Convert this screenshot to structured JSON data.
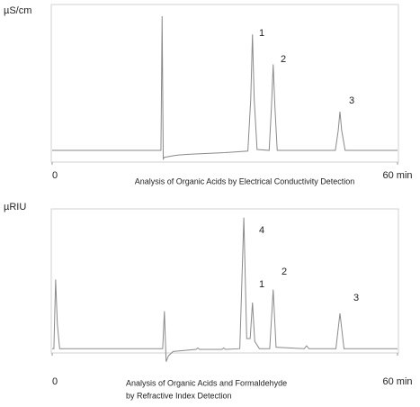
{
  "chart_data": [
    {
      "type": "line",
      "ylabel": "µS/cm",
      "title": "Analysis of Organic Acids by Electrical Conductivity Detection",
      "xlim": [
        0,
        60
      ],
      "ylim": [
        0,
        100
      ],
      "xticks": [
        0,
        {
          "value": 60,
          "label": "60 min"
        }
      ],
      "annotations": [
        "1",
        "2",
        "3"
      ],
      "series": [
        {
          "color": "#8a8a8a",
          "x": [
            0,
            18.9,
            19.1,
            19.3,
            19.5,
            21,
            22,
            24,
            30,
            34.0,
            34.5,
            34.8,
            35.1,
            35.6,
            37.7,
            38.1,
            38.4,
            38.7,
            39.1,
            49.2,
            49.7,
            50.0,
            50.3,
            50.9,
            60
          ],
          "values": [
            7.4,
            7.4,
            92.6,
            2,
            3,
            4,
            4.5,
            5,
            6,
            7,
            40,
            81,
            40,
            8,
            7.4,
            35,
            62,
            35,
            7.4,
            7.4,
            20,
            32,
            20,
            7.4,
            7.4
          ]
        }
      ]
    },
    {
      "type": "line",
      "ylabel": "µRIU",
      "title": "Analysis of Organic Acids and Formaldehyde",
      "subtitle": "by Refractive Index Detection",
      "xlim": [
        0,
        60
      ],
      "ylim": [
        0,
        100
      ],
      "xticks": [
        0,
        {
          "value": 60,
          "label": "60 min"
        }
      ],
      "annotations": [
        "4",
        "1",
        "2",
        "3"
      ],
      "series": [
        {
          "color": "#8a8a8a",
          "x": [
            0,
            0.3,
            0.6,
            0.9,
            1.3,
            19.2,
            19.5,
            19.8,
            20.2,
            21,
            25,
            25.3,
            25.6,
            29.5,
            29.8,
            30.1,
            32.6,
            33.3,
            33.8,
            34.4,
            34.8,
            35.2,
            36,
            37.8,
            38.4,
            38.9,
            43.8,
            44.2,
            44.6,
            49.3,
            50.0,
            50.7,
            60
          ],
          "values": [
            3,
            3,
            51,
            20,
            3,
            3,
            29,
            -6,
            -2,
            1,
            2.5,
            3.5,
            2.5,
            2.5,
            3.5,
            2.5,
            3,
            94,
            10,
            10,
            35,
            8,
            3,
            3,
            44,
            4,
            3,
            5,
            3,
            3,
            27.5,
            3,
            3
          ]
        }
      ]
    }
  ]
}
